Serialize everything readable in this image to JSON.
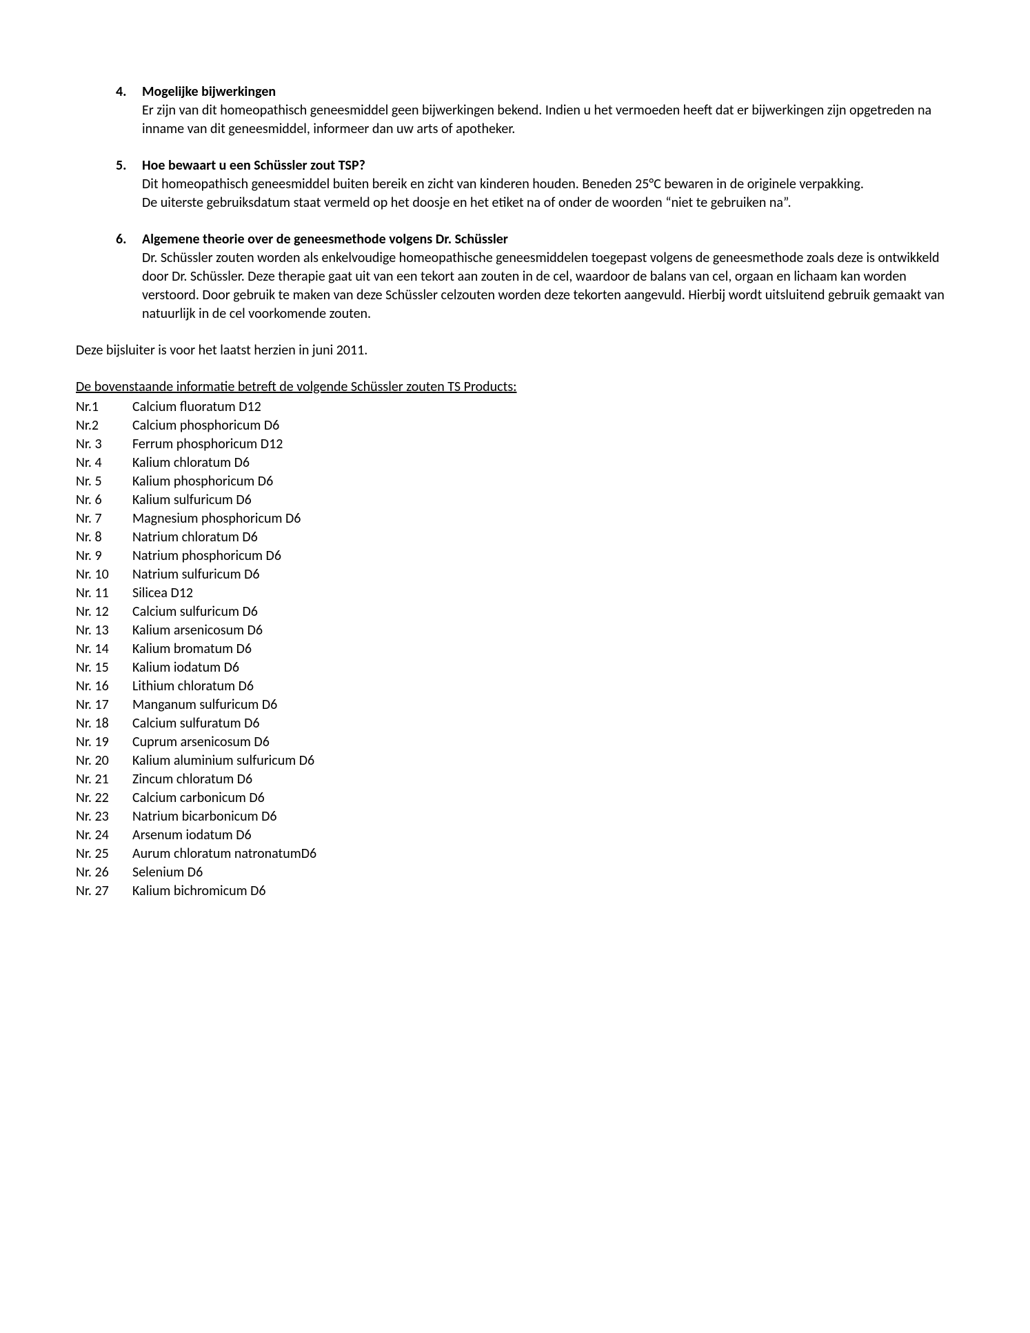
{
  "sections": [
    {
      "num": "4.",
      "title": "Mogelijke bijwerkingen",
      "paras": [
        "Er zijn van dit homeopathisch geneesmiddel geen bijwerkingen bekend. Indien u het vermoeden heeft dat er bijwerkingen zijn opgetreden na inname van dit geneesmiddel, informeer dan uw arts of apotheker."
      ]
    },
    {
      "num": "5.",
      "title": "Hoe bewaart u een Schüssler zout TSP?",
      "paras": [
        "Dit homeopathisch geneesmiddel buiten bereik en zicht van kinderen houden. Beneden 25°C bewaren in de originele verpakking.",
        "De uiterste gebruiksdatum staat vermeld op het doosje en het etiket na of onder de woorden “niet te gebruiken na”."
      ]
    },
    {
      "num": "6.",
      "title": "Algemene theorie over de geneesmethode volgens Dr. Schüssler",
      "paras": [
        "Dr. Schüssler zouten worden als enkelvoudige homeopathische geneesmiddelen toegepast volgens de geneesmethode zoals deze is ontwikkeld door Dr. Schüssler. Deze therapie gaat uit van een tekort aan zouten in de cel, waardoor de balans van cel, orgaan en lichaam kan worden verstoord. Door gebruik te maken van deze Schüssler celzouten worden deze tekorten aangevuld. Hierbij wordt uitsluitend gebruik gemaakt van natuurlijk in de cel voorkomende zouten."
      ]
    }
  ],
  "revision_line": "Deze bijsluiter is voor het laatst herzien in juni 2011.",
  "products_heading": "De bovenstaande informatie betreft de volgende Schüssler zouten TS Products:",
  "products": [
    {
      "nr": "Nr.1",
      "name": "Calcium fluoratum D12"
    },
    {
      "nr": "Nr.2",
      "name": "Calcium phosphoricum D6"
    },
    {
      "nr": "Nr. 3",
      "name": "Ferrum phosphoricum D12"
    },
    {
      "nr": "Nr. 4",
      "name": "Kalium chloratum D6"
    },
    {
      "nr": "Nr. 5",
      "name": "Kalium phosphoricum D6"
    },
    {
      "nr": "Nr. 6",
      "name": "Kalium sulfuricum D6"
    },
    {
      "nr": "Nr. 7",
      "name": "Magnesium phosphoricum D6"
    },
    {
      "nr": "Nr. 8",
      "name": "Natrium chloratum D6"
    },
    {
      "nr": "Nr. 9",
      "name": "Natrium phosphoricum D6"
    },
    {
      "nr": "Nr. 10",
      "name": "Natrium sulfuricum D6"
    },
    {
      "nr": "Nr. 11",
      "name": "Silicea D12"
    },
    {
      "nr": "Nr. 12",
      "name": "Calcium sulfuricum D6"
    },
    {
      "nr": "Nr. 13",
      "name": "Kalium arsenicosum D6"
    },
    {
      "nr": "Nr. 14",
      "name": "Kalium bromatum D6"
    },
    {
      "nr": "Nr. 15",
      "name": "Kalium iodatum D6"
    },
    {
      "nr": "Nr. 16",
      "name": "Lithium chloratum D6"
    },
    {
      "nr": "Nr. 17",
      "name": "Manganum sulfuricum D6"
    },
    {
      "nr": "Nr. 18",
      "name": "Calcium sulfuratum D6"
    },
    {
      "nr": "Nr. 19",
      "name": "Cuprum arsenicosum D6"
    },
    {
      "nr": "Nr. 20",
      "name": "Kalium aluminium sulfuricum D6"
    },
    {
      "nr": "Nr. 21",
      "name": "Zincum chloratum D6"
    },
    {
      "nr": "Nr. 22",
      "name": "Calcium carbonicum D6"
    },
    {
      "nr": "Nr. 23",
      "name": "Natrium bicarbonicum D6"
    },
    {
      "nr": "Nr. 24",
      "name": "Arsenum iodatum D6"
    },
    {
      "nr": "Nr. 25",
      "name": "Aurum chloratum natronatumD6"
    },
    {
      "nr": "Nr. 26",
      "name": "Selenium D6"
    },
    {
      "nr": "Nr. 27",
      "name": "Kalium bichromicum D6"
    }
  ]
}
